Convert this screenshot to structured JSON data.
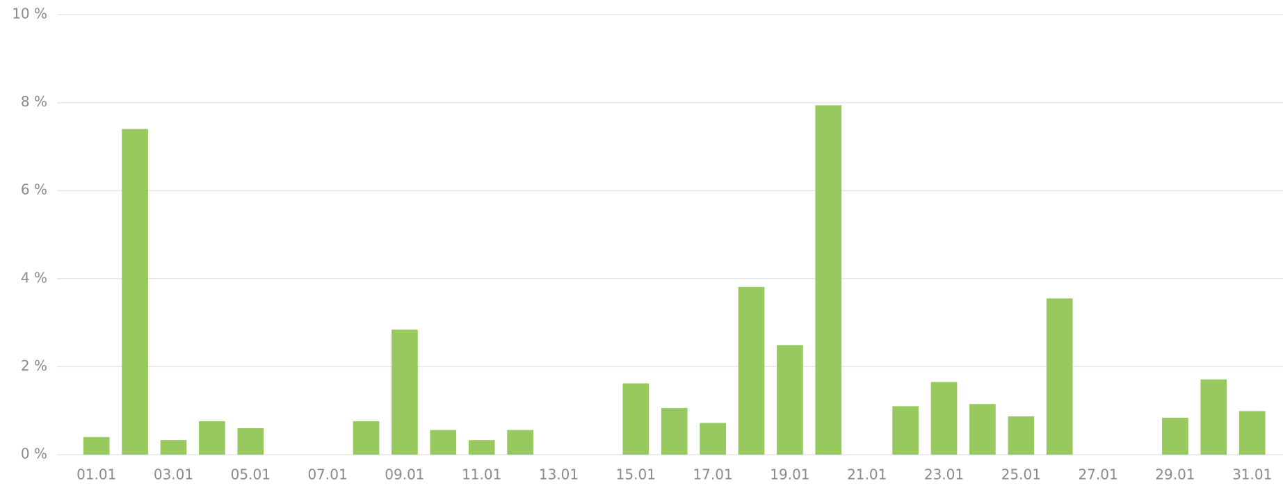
{
  "chart_data": {
    "type": "bar",
    "categories": [
      "01.01",
      null,
      "03.01",
      null,
      "05.01",
      null,
      "07.01",
      null,
      "09.01",
      null,
      "11.01",
      null,
      "13.01",
      null,
      "15.01",
      null,
      "17.01",
      null,
      "19.01",
      null,
      "21.01",
      null,
      "23.01",
      null,
      "25.01",
      null,
      "27.01",
      null,
      "29.01",
      null,
      "31.01"
    ],
    "values": [
      0.4,
      7.4,
      0.33,
      0.76,
      0.6,
      0,
      0,
      0.76,
      2.84,
      0.56,
      0.33,
      0.56,
      0,
      0,
      1.62,
      1.06,
      0.72,
      3.81,
      2.49,
      7.94,
      0,
      1.1,
      1.65,
      1.15,
      0.87,
      3.55,
      0,
      0,
      0.84,
      1.71,
      0.99
    ],
    "color": "#97c95f",
    "ylim": [
      0,
      10
    ],
    "yticks": [
      {
        "value": 0,
        "label": "0 %"
      },
      {
        "value": 2,
        "label": "2 %"
      },
      {
        "value": 4,
        "label": "4 %"
      },
      {
        "value": 6,
        "label": "6 %"
      },
      {
        "value": 8,
        "label": "8 %"
      },
      {
        "value": 10,
        "label": "10 %"
      }
    ],
    "grid": true
  }
}
